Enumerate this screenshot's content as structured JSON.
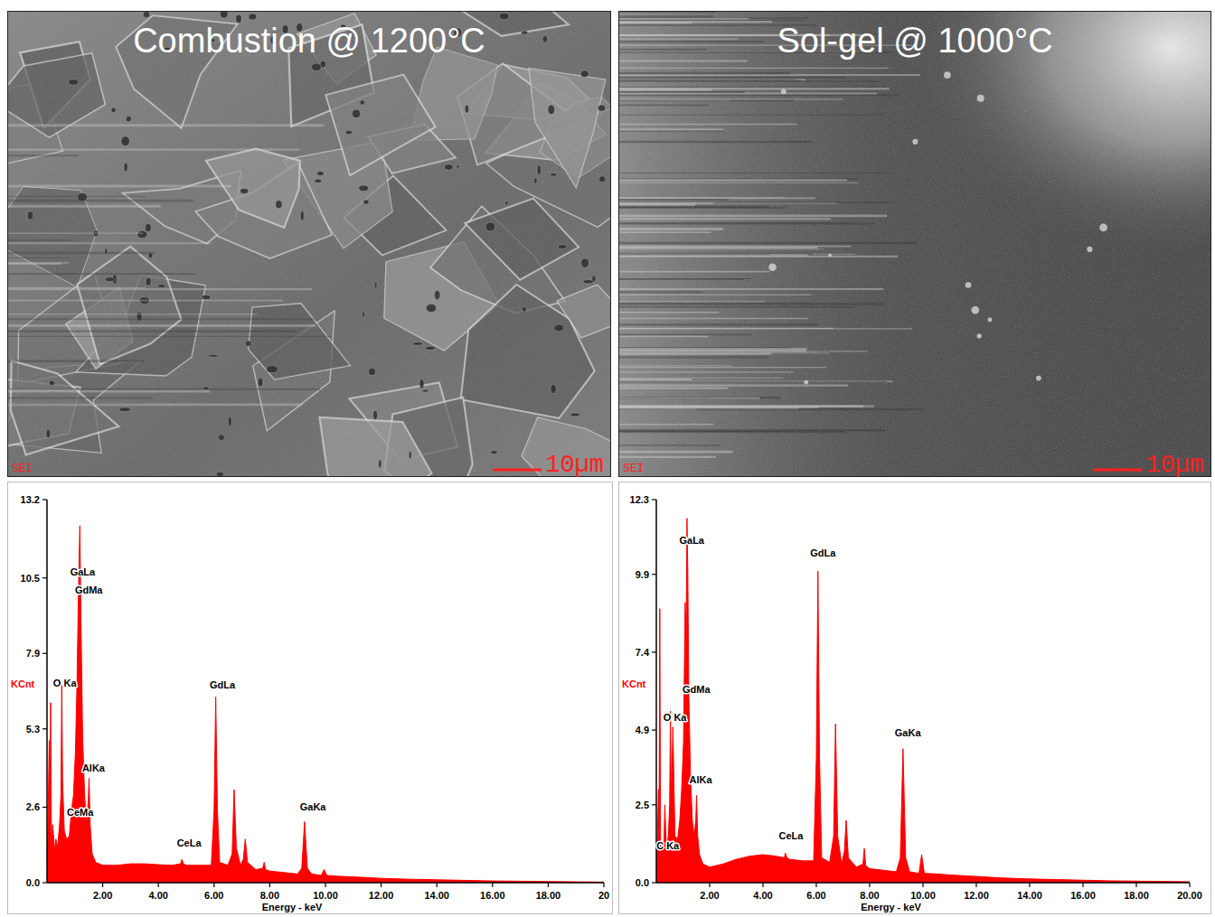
{
  "images": [
    {
      "title": "Combustion @ 1200°C",
      "scale_bar": "10µm",
      "detector": "SEI"
    },
    {
      "title": "Sol-gel @ 1000°C",
      "scale_bar": "10µm",
      "detector": "SEI"
    }
  ],
  "chart_data": [
    {
      "type": "area",
      "color": "#ff0000",
      "xlabel": "Energy - keV",
      "ylabel": "KCnt",
      "xlim": [
        0,
        20
      ],
      "ylim": [
        0,
        13.2
      ],
      "xticks": [
        {
          "value": 2,
          "label": "2.00"
        },
        {
          "value": 4,
          "label": "4.00"
        },
        {
          "value": 6,
          "label": "6.00"
        },
        {
          "value": 8,
          "label": "8.00"
        },
        {
          "value": 10,
          "label": "10.00"
        },
        {
          "value": 12,
          "label": "12.00"
        },
        {
          "value": 14,
          "label": "14.00"
        },
        {
          "value": 16,
          "label": "16.00"
        },
        {
          "value": 18,
          "label": "18.00"
        },
        20
      ],
      "yticks": [
        {
          "value": 0,
          "label": "0.0"
        },
        2.6,
        5.3,
        7.9,
        10.5,
        13.2
      ],
      "x": [
        0,
        0.08,
        0.1,
        0.13,
        0.16,
        0.2,
        0.28,
        0.32,
        0.38,
        0.45,
        0.5,
        0.53,
        0.56,
        0.62,
        0.7,
        0.8,
        0.88,
        0.95,
        1.02,
        1.08,
        1.12,
        1.15,
        1.18,
        1.22,
        1.28,
        1.35,
        1.42,
        1.48,
        1.51,
        1.55,
        1.62,
        1.75,
        2.0,
        2.5,
        3.0,
        3.5,
        4.0,
        4.5,
        4.8,
        4.84,
        4.9,
        5.0,
        5.5,
        5.9,
        6.0,
        6.06,
        6.12,
        6.2,
        6.5,
        6.65,
        6.72,
        6.8,
        6.95,
        7.05,
        7.12,
        7.2,
        7.5,
        7.75,
        7.8,
        7.85,
        8.0,
        8.5,
        9.0,
        9.15,
        9.25,
        9.35,
        9.5,
        9.85,
        9.95,
        10.05,
        10.5,
        11,
        12,
        13,
        14,
        15,
        16,
        17,
        18,
        19,
        20
      ],
      "values": [
        0,
        4.9,
        1.5,
        6.2,
        1.2,
        2.0,
        1.1,
        1.5,
        1.2,
        2.0,
        3.0,
        6.8,
        3.5,
        1.8,
        1.5,
        1.6,
        2.5,
        3.0,
        4.5,
        7.0,
        9.5,
        11.0,
        12.3,
        9.0,
        5.0,
        3.0,
        2.0,
        2.8,
        3.6,
        2.0,
        1.0,
        0.7,
        0.6,
        0.6,
        0.65,
        0.65,
        0.62,
        0.6,
        0.65,
        0.8,
        0.65,
        0.6,
        0.6,
        0.6,
        2.5,
        6.4,
        2.5,
        0.7,
        0.6,
        1.0,
        3.2,
        1.2,
        0.6,
        0.8,
        1.5,
        0.7,
        0.45,
        0.5,
        0.7,
        0.45,
        0.4,
        0.35,
        0.3,
        0.5,
        2.1,
        0.5,
        0.3,
        0.25,
        0.45,
        0.25,
        0.22,
        0.2,
        0.15,
        0.12,
        0.1,
        0.08,
        0.06,
        0.05,
        0.04,
        0.03,
        0.02
      ],
      "annotations": [
        {
          "text": "GaLa",
          "x": 1.28,
          "y": 10.6
        },
        {
          "text": "GdMa",
          "x": 1.5,
          "y": 9.97
        },
        {
          "text": "O Ka",
          "x": 0.64,
          "y": 6.76
        },
        {
          "text": "AlKa",
          "x": 1.67,
          "y": 3.83
        },
        {
          "text": "CeMa",
          "x": 1.19,
          "y": 2.3
        },
        {
          "text": "CeLa",
          "x": 5.1,
          "y": 1.25
        },
        {
          "text": "GdLa",
          "x": 6.3,
          "y": 6.7
        },
        {
          "text": "GaKa",
          "x": 9.55,
          "y": 2.5
        }
      ]
    },
    {
      "type": "area",
      "color": "#ff0000",
      "xlabel": "Energy - keV",
      "ylabel": "KCnt",
      "xlim": [
        0,
        20
      ],
      "ylim": [
        0,
        12.3
      ],
      "xticks": [
        {
          "value": 2,
          "label": "2.00"
        },
        {
          "value": 4,
          "label": "4.00"
        },
        {
          "value": 6,
          "label": "6.00"
        },
        {
          "value": 8,
          "label": "8.00"
        },
        {
          "value": 10,
          "label": "10.00"
        },
        {
          "value": 12,
          "label": "12.00"
        },
        {
          "value": 14,
          "label": "14.00"
        },
        {
          "value": 16,
          "label": "16.00"
        },
        {
          "value": 18,
          "label": "18.00"
        },
        {
          "value": 20,
          "label": "20.00"
        }
      ],
      "yticks": [
        {
          "value": 0,
          "label": "0.0"
        },
        2.5,
        4.9,
        7.4,
        9.9,
        12.3
      ],
      "x": [
        0,
        0.08,
        0.1,
        0.13,
        0.16,
        0.2,
        0.28,
        0.32,
        0.38,
        0.45,
        0.5,
        0.53,
        0.56,
        0.62,
        0.7,
        0.8,
        0.88,
        0.95,
        1.02,
        1.08,
        1.12,
        1.15,
        1.18,
        1.22,
        1.28,
        1.35,
        1.42,
        1.48,
        1.51,
        1.55,
        1.62,
        1.75,
        2.0,
        2.5,
        3.0,
        3.5,
        4.0,
        4.5,
        4.8,
        4.84,
        4.9,
        5.0,
        5.5,
        5.9,
        6.0,
        6.06,
        6.12,
        6.2,
        6.5,
        6.65,
        6.72,
        6.8,
        6.95,
        7.05,
        7.12,
        7.2,
        7.5,
        7.75,
        7.8,
        7.85,
        8.0,
        8.5,
        9.0,
        9.15,
        9.25,
        9.35,
        9.5,
        9.85,
        9.95,
        10.05,
        10.5,
        11,
        12,
        13,
        14,
        15,
        16,
        17,
        18,
        19,
        20
      ],
      "values": [
        0,
        3.0,
        1.0,
        8.8,
        1.0,
        1.2,
        1.0,
        2.5,
        1.0,
        1.5,
        2.5,
        5.5,
        2.5,
        5.0,
        1.5,
        1.4,
        2.0,
        3.0,
        4.5,
        9.0,
        8.0,
        11.7,
        10.0,
        6.0,
        3.5,
        2.0,
        1.5,
        2.0,
        2.8,
        1.5,
        0.9,
        0.6,
        0.5,
        0.6,
        0.75,
        0.85,
        0.9,
        0.85,
        0.8,
        0.95,
        0.8,
        0.75,
        0.7,
        0.7,
        4.0,
        10.0,
        4.0,
        0.8,
        0.65,
        1.5,
        5.1,
        1.5,
        0.6,
        1.0,
        2.0,
        0.8,
        0.5,
        0.6,
        1.1,
        0.55,
        0.45,
        0.4,
        0.35,
        0.8,
        4.3,
        0.8,
        0.35,
        0.3,
        0.9,
        0.3,
        0.28,
        0.25,
        0.2,
        0.15,
        0.12,
        0.1,
        0.08,
        0.06,
        0.05,
        0.04,
        0.03
      ],
      "annotations": [
        {
          "text": "GaLa",
          "x": 1.33,
          "y": 10.87
        },
        {
          "text": "GdMa",
          "x": 1.5,
          "y": 6.1
        },
        {
          "text": "O Ka",
          "x": 0.7,
          "y": 5.19
        },
        {
          "text": "AlKa",
          "x": 1.66,
          "y": 3.2
        },
        {
          "text": "C Ka",
          "x": 0.43,
          "y": 1.07
        },
        {
          "text": "CeLa",
          "x": 5.05,
          "y": 1.39
        },
        {
          "text": "GdLa",
          "x": 6.25,
          "y": 10.46
        },
        {
          "text": "GaKa",
          "x": 9.43,
          "y": 4.7
        }
      ]
    }
  ]
}
